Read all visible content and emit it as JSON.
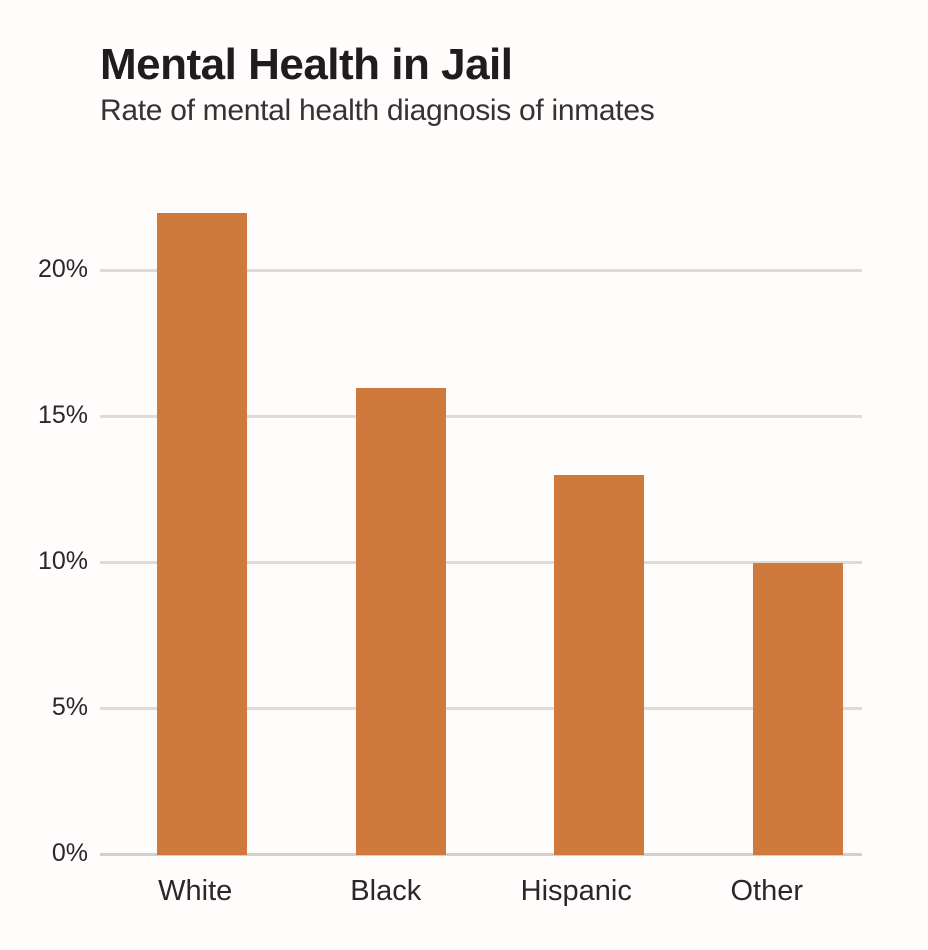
{
  "header": {
    "title": "Mental Health in Jail",
    "subtitle": "Rate of mental health diagnosis of inmates"
  },
  "chart_data": {
    "type": "bar",
    "title": "Mental Health in Jail",
    "subtitle": "Rate of mental health diagnosis of inmates",
    "categories": [
      "White",
      "Black",
      "Hispanic",
      "Other"
    ],
    "values": [
      22,
      16,
      13,
      10
    ],
    "unit": "%",
    "xlabel": "",
    "ylabel": "",
    "ylim": [
      0,
      23.5
    ],
    "yticks": [
      0,
      5,
      10,
      15,
      20
    ],
    "ytick_labels": [
      "0%",
      "5%",
      "10%",
      "15%",
      "20%"
    ],
    "grid": true,
    "legend": false
  },
  "colors": {
    "bar": "#d0793d",
    "gridline": "#dedcd7",
    "baseline": "#d2d0cb",
    "title_text": "#1f1c1d",
    "subtitle_text": "#343233",
    "axis_text": "#2a272a",
    "background": "#fefdfb"
  }
}
